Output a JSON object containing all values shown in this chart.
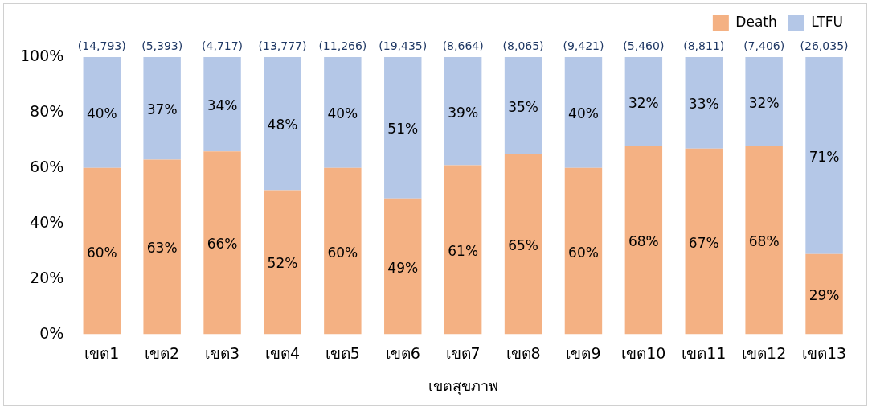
{
  "chart_data": {
    "type": "bar",
    "stacked": true,
    "xlabel": "เขตสุขภาพ",
    "categories": [
      "เขต1",
      "เขต2",
      "เขต3",
      "เขต4",
      "เขต5",
      "เขต6",
      "เขต7",
      "เขต8",
      "เขต9",
      "เขต10",
      "เขต11",
      "เขต12",
      "เขต13"
    ],
    "series": [
      {
        "name": "Death",
        "color": "#f4b183",
        "values": [
          60,
          63,
          66,
          52,
          60,
          49,
          61,
          65,
          60,
          68,
          67,
          68,
          29
        ],
        "value_labels": [
          "60%",
          "63%",
          "66%",
          "52%",
          "60%",
          "49%",
          "61%",
          "65%",
          "60%",
          "68%",
          "67%",
          "68%",
          "29%"
        ]
      },
      {
        "name": "LTFU",
        "color": "#b4c7e7",
        "values": [
          40,
          37,
          34,
          48,
          40,
          51,
          39,
          35,
          40,
          32,
          33,
          32,
          71
        ],
        "value_labels": [
          "40%",
          "37%",
          "34%",
          "48%",
          "40%",
          "51%",
          "39%",
          "35%",
          "40%",
          "32%",
          "33%",
          "32%",
          "71%"
        ]
      }
    ],
    "annotations": [
      {
        "text": "(14,793)",
        "x": "เขต1",
        "y": 100
      },
      {
        "text": "(5,393)",
        "x": "เขต2",
        "y": 100
      },
      {
        "text": "(4,717)",
        "x": "เขต3",
        "y": 100
      },
      {
        "text": "(13,777)",
        "x": "เขต4",
        "y": 100
      },
      {
        "text": "(11,266)",
        "x": "เขต5",
        "y": 100
      },
      {
        "text": "(19,435)",
        "x": "เขต6",
        "y": 100
      },
      {
        "text": "(8,664)",
        "x": "เขต7",
        "y": 100
      },
      {
        "text": "(8,065)",
        "x": "เขต8",
        "y": 100
      },
      {
        "text": "(9,421)",
        "x": "เขต9",
        "y": 100
      },
      {
        "text": "(5,460)",
        "x": "เขต10",
        "y": 100
      },
      {
        "text": "(8,811)",
        "x": "เขต11",
        "y": 100
      },
      {
        "text": "(7,406)",
        "x": "เขต12",
        "y": 100
      },
      {
        "text": "(26,035)",
        "x": "เขต13",
        "y": 100
      }
    ],
    "ylim": [
      0,
      100
    ],
    "yticks": [
      {
        "value": 0,
        "label": "0%"
      },
      {
        "value": 20,
        "label": "20%"
      },
      {
        "value": 40,
        "label": "40%"
      },
      {
        "value": 60,
        "label": "60%"
      },
      {
        "value": 80,
        "label": "80%"
      },
      {
        "value": 100,
        "label": "100%"
      }
    ],
    "grid": false,
    "legend": "top right"
  }
}
